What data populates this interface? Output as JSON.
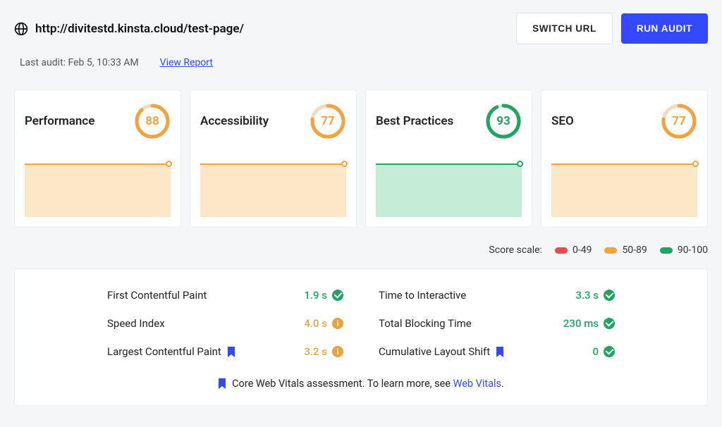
{
  "header": {
    "url": "http://divitestd.kinsta.cloud/test-page/",
    "switch_label": "SWITCH URL",
    "run_label": "RUN AUDIT",
    "last_audit": "Last audit: Feb 5, 10:33 AM",
    "view_report": "View Report"
  },
  "colors": {
    "orange": "#f3a33c",
    "orange_fill": "#fce7c6",
    "green": "#1fa463",
    "green_fill": "#c5ecd5",
    "red": "#e84b4b",
    "blue": "#3348ff",
    "ring_track": "#f0dcc2"
  },
  "cards": [
    {
      "title": "Performance",
      "score": 88,
      "tier": "orange"
    },
    {
      "title": "Accessibility",
      "score": 77,
      "tier": "orange"
    },
    {
      "title": "Best Practices",
      "score": 93,
      "tier": "green"
    },
    {
      "title": "SEO",
      "score": 77,
      "tier": "orange"
    }
  ],
  "legend": {
    "label": "Score scale:",
    "ranges": [
      {
        "text": "0-49",
        "color": "#e84b4b"
      },
      {
        "text": "50-89",
        "color": "#f3a33c"
      },
      {
        "text": "90-100",
        "color": "#1fa463"
      }
    ]
  },
  "metrics": {
    "left": [
      {
        "label": "First Contentful Paint",
        "value": "1.9 s",
        "value_color": "#1fa463",
        "status": "check",
        "flag": false
      },
      {
        "label": "Speed Index",
        "value": "4.0 s",
        "value_color": "#e8a33d",
        "status": "info",
        "flag": false
      },
      {
        "label": "Largest Contentful Paint",
        "value": "3.2 s",
        "value_color": "#e8a33d",
        "status": "info",
        "flag": true
      }
    ],
    "right": [
      {
        "label": "Time to Interactive",
        "value": "3.3 s",
        "value_color": "#1fa463",
        "status": "check",
        "flag": false
      },
      {
        "label": "Total Blocking Time",
        "value": "230 ms",
        "value_color": "#1fa463",
        "status": "check",
        "flag": false
      },
      {
        "label": "Cumulative Layout Shift",
        "value": "0",
        "value_color": "#1fa463",
        "status": "check",
        "flag": true
      }
    ]
  },
  "footer": {
    "text": "Core Web Vitals assessment. To learn more, see ",
    "link": "Web Vitals",
    "period": "."
  }
}
